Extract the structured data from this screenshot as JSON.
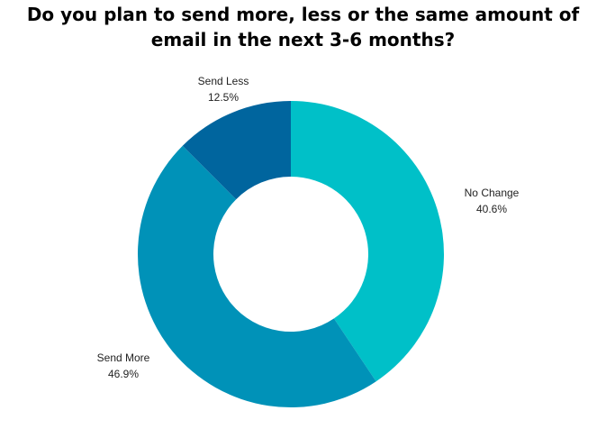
{
  "title_lines": [
    "Do you plan to send more, less or the same amount of",
    "email in the next 3-6 months?"
  ],
  "chart_data": {
    "type": "pie",
    "variant": "donut",
    "title": "Do you plan to send more, less or the same amount of email in the next 3-6 months?",
    "slices": [
      {
        "label": "No Change",
        "value": 40.6,
        "value_label": "40.6%",
        "color": "#00C0C8"
      },
      {
        "label": "Send More",
        "value": 46.9,
        "value_label": "46.9%",
        "color": "#0092B8"
      },
      {
        "label": "Send Less",
        "value": 12.5,
        "value_label": "12.5%",
        "color": "#00659E"
      }
    ],
    "start_angle_deg": 0,
    "direction": "clockwise",
    "legend": "none"
  }
}
